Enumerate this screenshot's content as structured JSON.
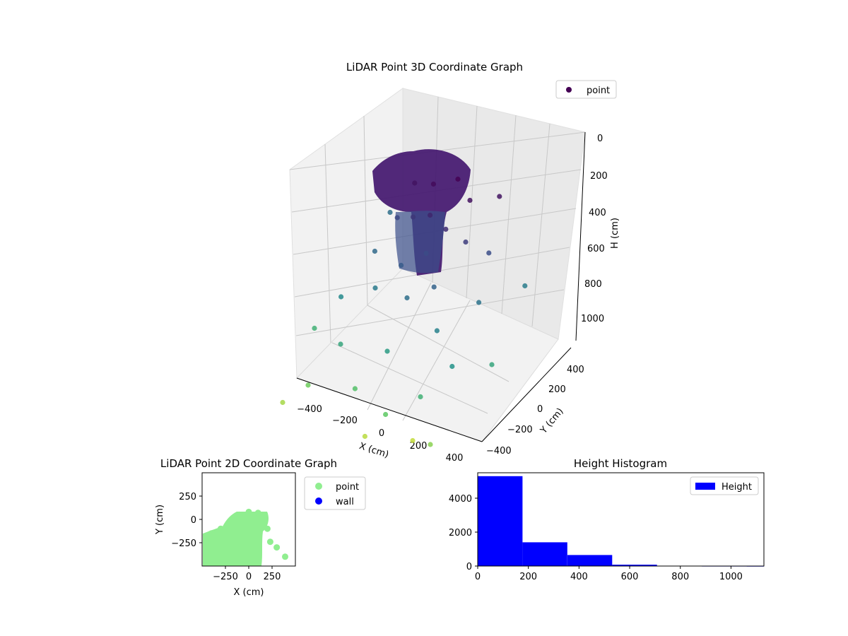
{
  "chart_data": [
    {
      "type": "scatter",
      "title": "LiDAR Point 3D Coordinate Graph",
      "xlabel": "X (cm)",
      "ylabel": "Y (cm)",
      "zlabel": "H (cm)",
      "x_ticks": [
        "−400",
        "−200",
        "0",
        "200",
        "400"
      ],
      "y_ticks": [
        "−400",
        "−200",
        "0",
        "200",
        "400"
      ],
      "z_ticks": [
        "0",
        "200",
        "400",
        "600",
        "800",
        "1000"
      ],
      "z_inverted": true,
      "legend": {
        "labels": [
          "point"
        ],
        "placement": "top-right"
      },
      "colormap": "viridis",
      "series": [
        {
          "name": "point",
          "points": [
            [
              0,
              250,
              0
            ],
            [
              -100,
              200,
              30
            ],
            [
              100,
              200,
              50
            ],
            [
              -200,
              200,
              60
            ],
            [
              200,
              300,
              60
            ],
            [
              -50,
              100,
              120
            ],
            [
              50,
              80,
              150
            ],
            [
              -150,
              120,
              180
            ],
            [
              150,
              100,
              200
            ],
            [
              0,
              0,
              250
            ],
            [
              -250,
              150,
              240
            ],
            [
              250,
              150,
              260
            ],
            [
              -100,
              -50,
              320
            ],
            [
              100,
              -80,
              350
            ],
            [
              0,
              -150,
              400
            ],
            [
              -300,
              50,
              380
            ],
            [
              300,
              0,
              420
            ],
            [
              -200,
              -100,
              450
            ],
            [
              200,
              -200,
              480
            ],
            [
              -400,
              350,
              400
            ],
            [
              400,
              250,
              460
            ],
            [
              -350,
              -150,
              520
            ],
            [
              350,
              -300,
              560
            ],
            [
              0,
              -300,
              600
            ],
            [
              -250,
              -300,
              650
            ],
            [
              250,
              -400,
              700
            ],
            [
              -450,
              -200,
              700
            ],
            [
              450,
              -100,
              650
            ],
            [
              -100,
              -400,
              780
            ],
            [
              100,
              -450,
              820
            ],
            [
              -350,
              -400,
              850
            ],
            [
              350,
              -450,
              900
            ],
            [
              -450,
              -450,
              950
            ],
            [
              0,
              -450,
              980
            ],
            [
              200,
              -350,
              1000
            ]
          ]
        }
      ]
    },
    {
      "type": "scatter",
      "title": "LiDAR Point 2D Coordinate Graph",
      "xlabel": "X (cm)",
      "ylabel": "Y (cm)",
      "xlim": [
        -500,
        500
      ],
      "ylim": [
        -500,
        500
      ],
      "x_ticks": [
        -250,
        0,
        250
      ],
      "y_ticks": [
        -250,
        0,
        250
      ],
      "legend": {
        "labels": [
          "point",
          "wall"
        ],
        "placement": "outside right",
        "colors": [
          "#90ee90",
          "#0000ff"
        ]
      },
      "series": [
        {
          "name": "point",
          "color": "#90ee90",
          "points": [
            [
              -400,
              -150
            ],
            [
              -300,
              -100
            ],
            [
              -200,
              -50
            ],
            [
              -100,
              50
            ],
            [
              0,
              80
            ],
            [
              100,
              70
            ],
            [
              170,
              0
            ],
            [
              200,
              -100
            ],
            [
              100,
              -250
            ],
            [
              0,
              -350
            ],
            [
              -200,
              -400
            ],
            [
              -450,
              -400
            ],
            [
              230,
              -240
            ],
            [
              300,
              -300
            ],
            [
              390,
              -400
            ]
          ]
        },
        {
          "name": "wall",
          "color": "#0000ff",
          "points": []
        }
      ]
    },
    {
      "type": "bar",
      "title": "Height Histogram",
      "xlabel": "",
      "ylabel": "",
      "xlim": [
        0,
        1130
      ],
      "ylim": [
        0,
        5500
      ],
      "x_ticks": [
        0,
        200,
        400,
        600,
        800,
        1000
      ],
      "y_ticks": [
        0,
        2000,
        4000
      ],
      "legend": {
        "labels": [
          "Height"
        ],
        "placement": "top-right"
      },
      "color": "#0000ff",
      "bin_edges": [
        0,
        177,
        354,
        531,
        708,
        885,
        1062,
        1130
      ],
      "values": [
        5300,
        1400,
        650,
        80,
        20,
        10,
        5
      ],
      "series": [
        {
          "name": "Height"
        }
      ]
    }
  ]
}
